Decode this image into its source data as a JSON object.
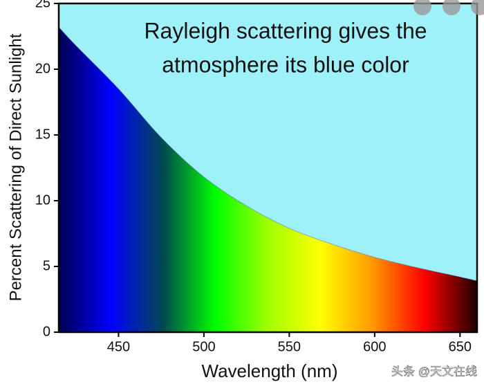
{
  "chart_data": {
    "type": "area",
    "annotation": [
      "Rayleigh scattering gives the",
      "atmosphere its blue color"
    ],
    "x_label": "Wavelength (nm)",
    "y_label": "Percent Scattering of Direct Sunlight",
    "x": [
      415,
      425,
      450,
      475,
      500,
      525,
      550,
      575,
      600,
      625,
      650,
      660
    ],
    "values": [
      23.2,
      21.8,
      18.5,
      14.8,
      11.8,
      9.6,
      7.9,
      6.7,
      5.7,
      4.9,
      4.2,
      3.9
    ],
    "xlim": [
      415,
      660
    ],
    "ylim": [
      0,
      25
    ],
    "xticks": [
      450,
      500,
      550,
      600,
      650
    ],
    "yticks": [
      0,
      5,
      10,
      15,
      20,
      25
    ],
    "background_color": "#9ef1f8",
    "spectrum_colors": [
      "#000050",
      "#0000ff",
      "#004a50",
      "#00ff00",
      "#a0ff00",
      "#ffff00",
      "#ff9900",
      "#ff0000",
      "#200000"
    ],
    "watermark": "头条 @天文在线"
  }
}
